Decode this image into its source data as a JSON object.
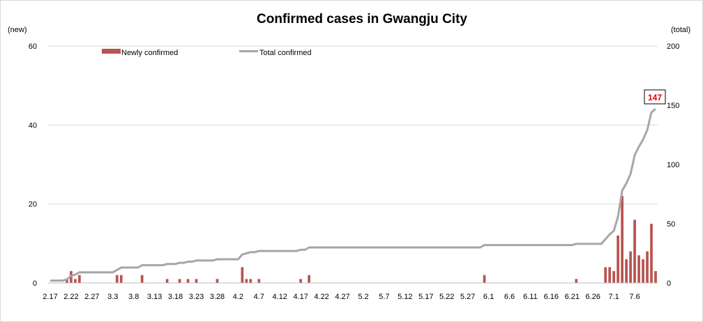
{
  "chart_data": {
    "type": "bar",
    "title": "Confirmed cases in Gwangju City",
    "y_left_label": "(new)",
    "y_right_label": "(total)",
    "ylim_left": [
      0,
      60
    ],
    "ylim_right": [
      0,
      200
    ],
    "y_left_ticks": [
      "0",
      "20",
      "40",
      "60"
    ],
    "y_right_ticks": [
      "0",
      "50",
      "100",
      "150",
      "200"
    ],
    "grid": true,
    "legend_position": "top-left",
    "x_tick_labels": [
      "2.17",
      "2.22",
      "2.27",
      "3.3",
      "3.8",
      "3.13",
      "3.18",
      "3.23",
      "3.28",
      "4.2",
      "4.7",
      "4.12",
      "4.17",
      "4.22",
      "4.27",
      "5.2",
      "5.7",
      "5.12",
      "5.17",
      "5.22",
      "5.27",
      "6.1",
      "6.6",
      "6.11",
      "6.16",
      "6.21",
      "6.26",
      "7.1",
      "7.6"
    ],
    "series": [
      {
        "name": "Newly confirmed",
        "type": "bar",
        "axis": "left",
        "color": "#b85450",
        "values": [
          0,
          0,
          0,
          0,
          1,
          3,
          1,
          2,
          0,
          0,
          0,
          0,
          0,
          0,
          0,
          0,
          2,
          2,
          0,
          0,
          0,
          0,
          2,
          0,
          0,
          0,
          0,
          0,
          1,
          0,
          0,
          1,
          0,
          1,
          0,
          1,
          0,
          0,
          0,
          0,
          1,
          0,
          0,
          0,
          0,
          0,
          4,
          1,
          1,
          0,
          1,
          0,
          0,
          0,
          0,
          0,
          0,
          0,
          0,
          0,
          1,
          0,
          2,
          0,
          0,
          0,
          0,
          0,
          0,
          0,
          0,
          0,
          0,
          0,
          0,
          0,
          0,
          0,
          0,
          0,
          0,
          0,
          0,
          0,
          0,
          0,
          0,
          0,
          0,
          0,
          0,
          0,
          0,
          0,
          0,
          0,
          0,
          0,
          0,
          0,
          0,
          0,
          0,
          0,
          2,
          0,
          0,
          0,
          0,
          0,
          0,
          0,
          0,
          0,
          0,
          0,
          0,
          0,
          0,
          0,
          0,
          0,
          0,
          0,
          0,
          0,
          1,
          0,
          0,
          0,
          0,
          0,
          0,
          4,
          4,
          3,
          12,
          22,
          6,
          8,
          16,
          7,
          6,
          8,
          15,
          3
        ]
      },
      {
        "name": "Total confirmed",
        "type": "line",
        "axis": "right",
        "color": "#a6a6a6",
        "values": [
          2,
          2,
          2,
          2,
          3,
          6,
          7,
          9,
          9,
          9,
          9,
          9,
          9,
          9,
          9,
          9,
          11,
          13,
          13,
          13,
          13,
          13,
          15,
          15,
          15,
          15,
          15,
          15,
          16,
          16,
          16,
          17,
          17,
          18,
          18,
          19,
          19,
          19,
          19,
          19,
          20,
          20,
          20,
          20,
          20,
          20,
          24,
          25,
          26,
          26,
          27,
          27,
          27,
          27,
          27,
          27,
          27,
          27,
          27,
          27,
          28,
          28,
          30,
          30,
          30,
          30,
          30,
          30,
          30,
          30,
          30,
          30,
          30,
          30,
          30,
          30,
          30,
          30,
          30,
          30,
          30,
          30,
          30,
          30,
          30,
          30,
          30,
          30,
          30,
          30,
          30,
          30,
          30,
          30,
          30,
          30,
          30,
          30,
          30,
          30,
          30,
          30,
          30,
          30,
          32,
          32,
          32,
          32,
          32,
          32,
          32,
          32,
          32,
          32,
          32,
          32,
          32,
          32,
          32,
          32,
          32,
          32,
          32,
          32,
          32,
          32,
          33,
          33,
          33,
          33,
          33,
          33,
          33,
          37,
          41,
          44,
          56,
          78,
          84,
          92,
          108,
          115,
          121,
          129,
          144,
          147
        ]
      }
    ],
    "annotation": {
      "label": "147",
      "color": "#e00000"
    }
  }
}
